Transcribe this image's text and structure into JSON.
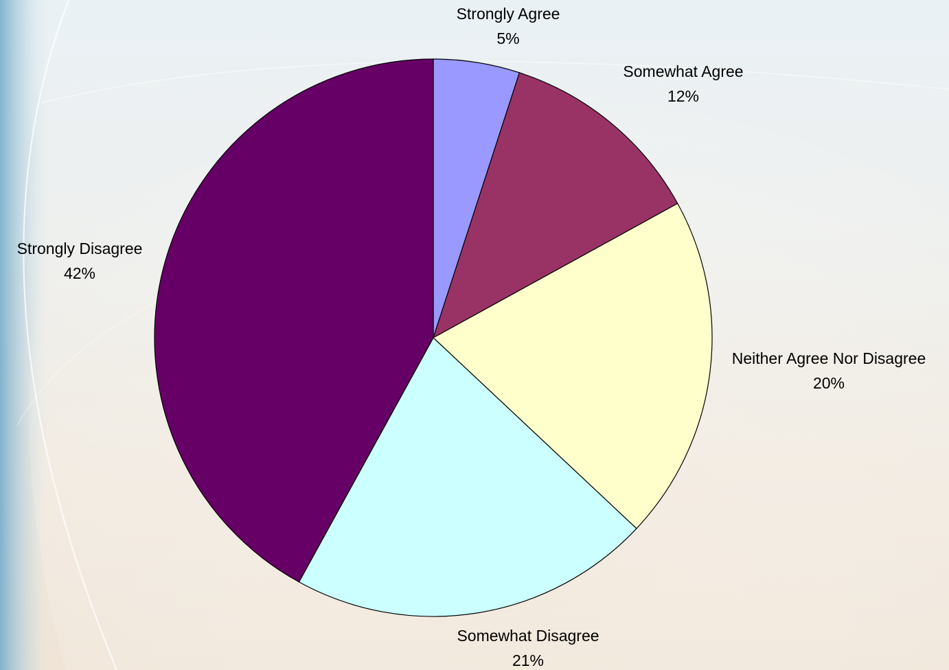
{
  "chart_data": {
    "type": "pie",
    "start_angle_deg": 0,
    "direction": "clockwise",
    "slices": [
      {
        "label": "Strongly Agree",
        "value": 5,
        "value_label": "5%",
        "color": "#9999ff"
      },
      {
        "label": "Somewhat Agree",
        "value": 12,
        "value_label": "12%",
        "color": "#993366"
      },
      {
        "label": "Neither Agree Nor Disagree",
        "value": 20,
        "value_label": "20%",
        "color": "#ffffcc"
      },
      {
        "label": "Somewhat Disagree",
        "value": 21,
        "value_label": "21%",
        "color": "#ccffff"
      },
      {
        "label": "Strongly Disagree",
        "value": 42,
        "value_label": "42%",
        "color": "#660066"
      }
    ]
  }
}
